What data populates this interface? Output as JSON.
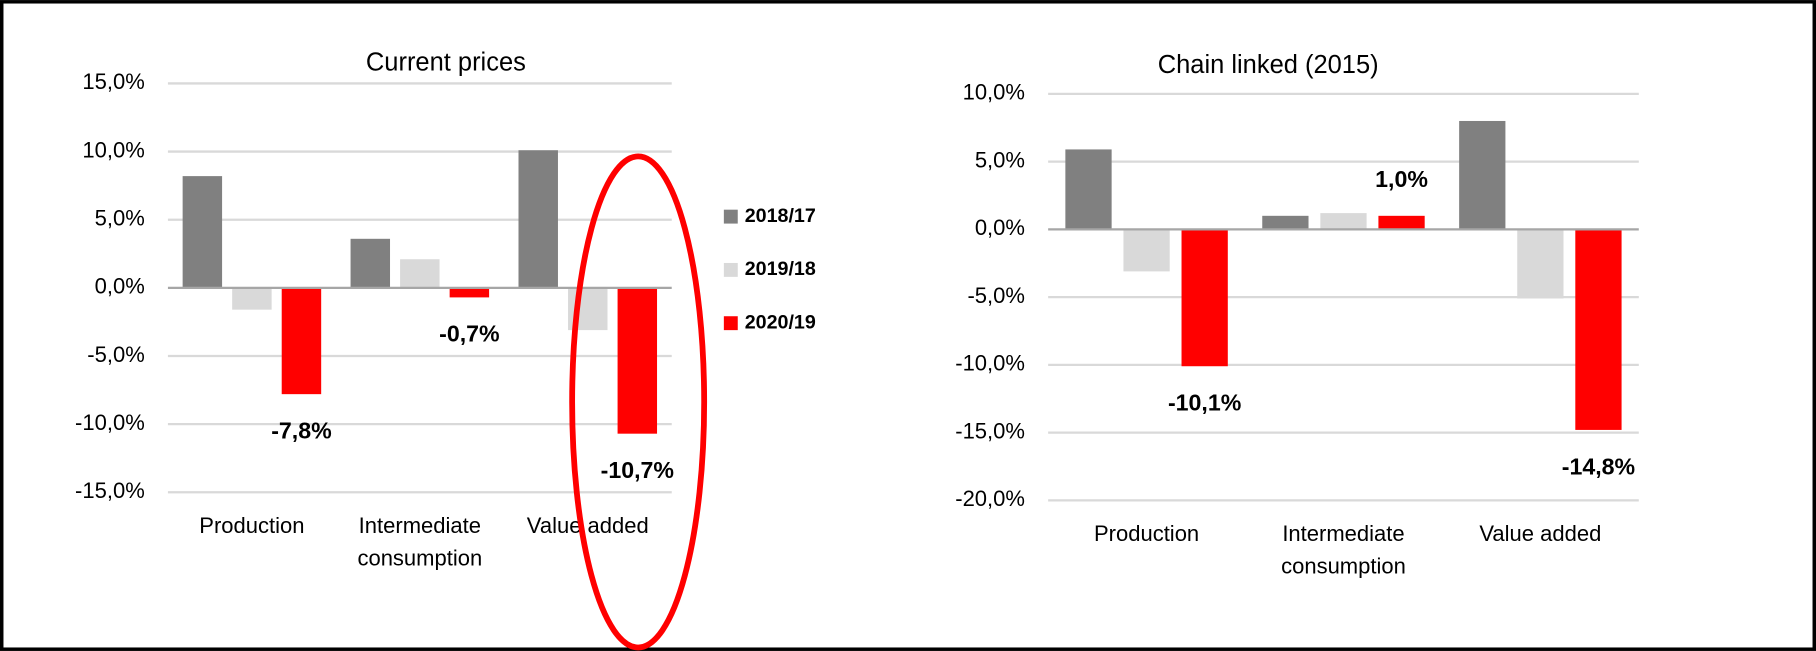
{
  "chart_data": [
    {
      "type": "bar",
      "title": "Current prices",
      "categories": [
        "Production",
        "Intermediate consumption",
        "Value added"
      ],
      "series": [
        {
          "name": "2018/17",
          "color": "#808080",
          "values": [
            8.2,
            3.6,
            10.1
          ]
        },
        {
          "name": "2019/18",
          "color": "#d9d9d9",
          "values": [
            -1.6,
            2.1,
            -3.1
          ]
        },
        {
          "name": "2020/19",
          "color": "#ff0000",
          "values": [
            -7.8,
            -0.7,
            -10.7
          ],
          "value_labels": [
            "-7,8%",
            "-0,7%",
            "-10,7%"
          ]
        }
      ],
      "ylim": [
        -15,
        15
      ],
      "yticks": [
        {
          "value": -15,
          "label": "-15,0%"
        },
        {
          "value": -10,
          "label": "-10,0%"
        },
        {
          "value": -5,
          "label": "-5,0%"
        },
        {
          "value": 0,
          "label": "0,0%"
        },
        {
          "value": 5,
          "label": "5,0%"
        },
        {
          "value": 10,
          "label": "10,0%"
        },
        {
          "value": 15,
          "label": "15,0%"
        }
      ],
      "grid": true,
      "legend": "right"
    },
    {
      "type": "bar",
      "title": "Chain linked (2015)",
      "categories": [
        "Production",
        "Intermediate consumption",
        "Value added"
      ],
      "series": [
        {
          "name": "2018/17",
          "color": "#808080",
          "values": [
            5.9,
            1.0,
            8.0
          ]
        },
        {
          "name": "2019/18",
          "color": "#d9d9d9",
          "values": [
            -3.1,
            1.2,
            -5.1
          ]
        },
        {
          "name": "2020/19",
          "color": "#ff0000",
          "values": [
            -10.1,
            1.0,
            -14.8
          ],
          "value_labels": [
            "-10,1%",
            "1,0%",
            "-14,8%"
          ]
        }
      ],
      "ylim": [
        -20,
        10
      ],
      "yticks": [
        {
          "value": -20,
          "label": "-20,0%"
        },
        {
          "value": -15,
          "label": "-15,0%"
        },
        {
          "value": -10,
          "label": "-10,0%"
        },
        {
          "value": -5,
          "label": "-5,0%"
        },
        {
          "value": 0,
          "label": "0,0%"
        },
        {
          "value": 5,
          "label": "5,0%"
        },
        {
          "value": 10,
          "label": "10,0%"
        }
      ],
      "grid": true
    }
  ]
}
